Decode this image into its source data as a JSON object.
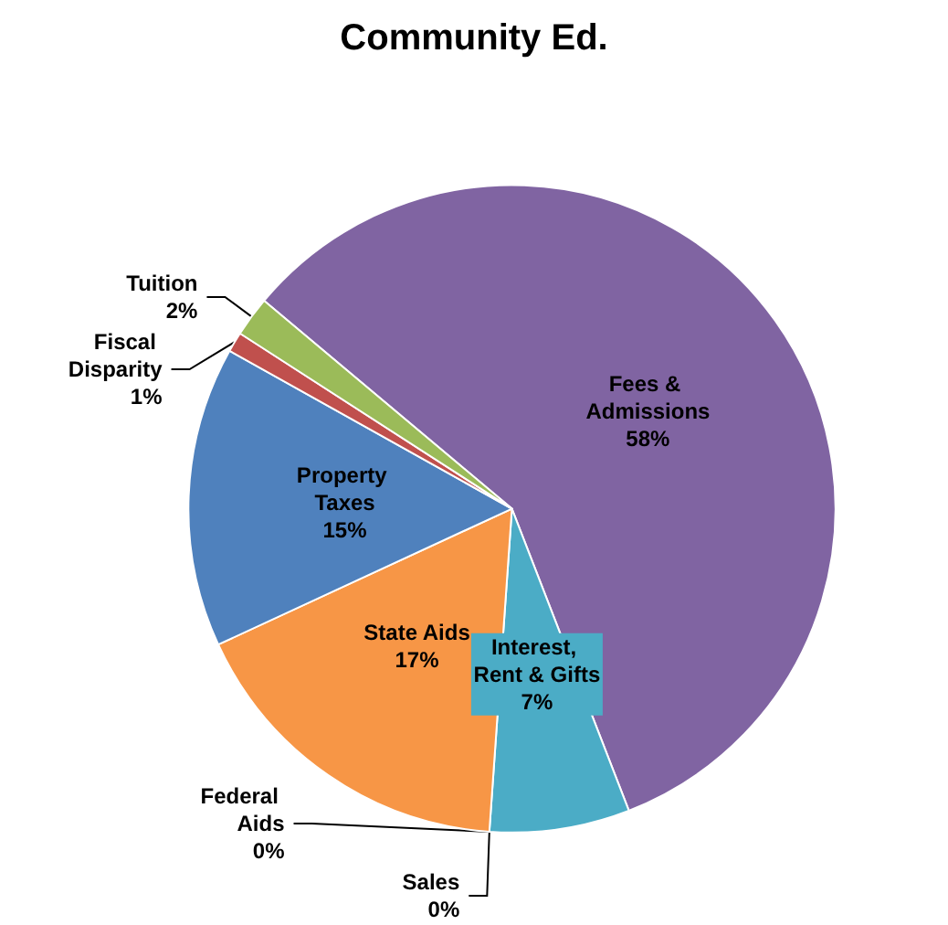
{
  "chart_data": {
    "type": "pie",
    "title": "Community Ed.",
    "categories": [
      "Fees & Admissions",
      "Interest, Rent & Gifts",
      "Sales",
      "Federal Aids",
      "State Aids",
      "Property Taxes",
      "Fiscal Disparity",
      "Tuition"
    ],
    "values": [
      58,
      7,
      0,
      0,
      17,
      15,
      1,
      2
    ],
    "value_labels": [
      "58%",
      "7%",
      "0%",
      "0%",
      "17%",
      "15%",
      "1%",
      "2%"
    ],
    "colors": [
      "#8064a2",
      "#4bacc6",
      "#2c4d75",
      "#772c2a",
      "#f79646",
      "#4f81bd",
      "#c0504d",
      "#9bbb59"
    ],
    "legend": false
  }
}
